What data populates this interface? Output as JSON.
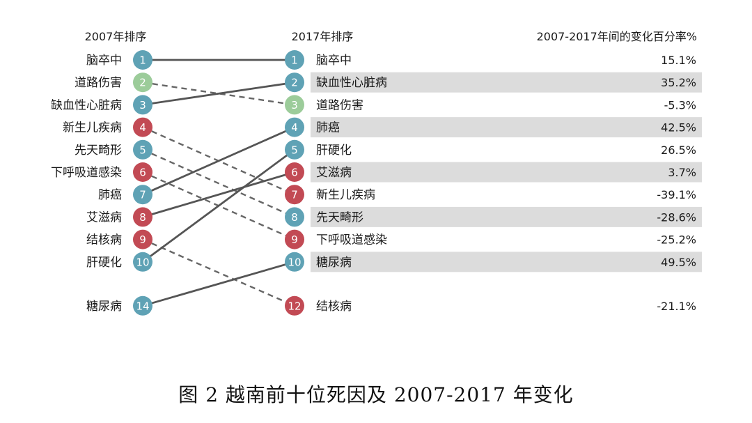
{
  "chart_data": {
    "type": "slope",
    "title": "",
    "headers": {
      "left": "2007年排序",
      "middle": "2017年排序",
      "right": "2007-2017年间的变化百分率%"
    },
    "caption": "图 2  越南前十位死因及 2007-2017 年变化",
    "colors": {
      "teal": "#5fa2b5",
      "green": "#9ccc9a",
      "red": "#c24a54",
      "solid_line": "#555555",
      "dashed_line": "#666666",
      "row_highlight": "#dcdcdc"
    },
    "left": [
      {
        "rank": 1,
        "label": "脑卒中",
        "color": "teal"
      },
      {
        "rank": 2,
        "label": "道路伤害",
        "color": "green"
      },
      {
        "rank": 3,
        "label": "缺血性心脏病",
        "color": "teal"
      },
      {
        "rank": 4,
        "label": "新生儿疾病",
        "color": "red"
      },
      {
        "rank": 5,
        "label": "先天畸形",
        "color": "teal"
      },
      {
        "rank": 6,
        "label": "下呼吸道感染",
        "color": "red"
      },
      {
        "rank": 7,
        "label": "肺癌",
        "color": "teal"
      },
      {
        "rank": 8,
        "label": "艾滋病",
        "color": "red"
      },
      {
        "rank": 9,
        "label": "结核病",
        "color": "red"
      },
      {
        "rank": 10,
        "label": "肝硬化",
        "color": "teal"
      },
      {
        "rank": 14,
        "label": "糖尿病",
        "color": "teal"
      }
    ],
    "right": [
      {
        "rank": 1,
        "label": "脑卒中",
        "change": "15.1%",
        "color": "teal",
        "highlight": false
      },
      {
        "rank": 2,
        "label": "缺血性心脏病",
        "change": "35.2%",
        "color": "teal",
        "highlight": true
      },
      {
        "rank": 3,
        "label": "道路伤害",
        "change": "-5.3%",
        "color": "green",
        "highlight": false
      },
      {
        "rank": 4,
        "label": "肺癌",
        "change": "42.5%",
        "color": "teal",
        "highlight": true
      },
      {
        "rank": 5,
        "label": "肝硬化",
        "change": "26.5%",
        "color": "teal",
        "highlight": false
      },
      {
        "rank": 6,
        "label": "艾滋病",
        "change": "3.7%",
        "color": "red",
        "highlight": true
      },
      {
        "rank": 7,
        "label": "新生儿疾病",
        "change": "-39.1%",
        "color": "red",
        "highlight": false
      },
      {
        "rank": 8,
        "label": "先天畸形",
        "change": "-28.6%",
        "color": "teal",
        "highlight": true
      },
      {
        "rank": 9,
        "label": "下呼吸道感染",
        "change": "-25.2%",
        "color": "red",
        "highlight": false
      },
      {
        "rank": 10,
        "label": "糖尿病",
        "change": "49.5%",
        "color": "teal",
        "highlight": true
      },
      {
        "rank": 12,
        "label": "结核病",
        "change": "-21.1%",
        "color": "red",
        "highlight": false
      }
    ],
    "links": [
      {
        "from": 1,
        "to": 1,
        "style": "solid"
      },
      {
        "from": 2,
        "to": 3,
        "style": "dashed"
      },
      {
        "from": 3,
        "to": 2,
        "style": "solid"
      },
      {
        "from": 4,
        "to": 7,
        "style": "dashed"
      },
      {
        "from": 5,
        "to": 8,
        "style": "dashed"
      },
      {
        "from": 6,
        "to": 9,
        "style": "dashed"
      },
      {
        "from": 7,
        "to": 4,
        "style": "solid"
      },
      {
        "from": 8,
        "to": 6,
        "style": "solid"
      },
      {
        "from": 9,
        "to": 12,
        "style": "dashed"
      },
      {
        "from": 10,
        "to": 5,
        "style": "solid"
      },
      {
        "from": 14,
        "to": 10,
        "style": "solid"
      }
    ]
  }
}
